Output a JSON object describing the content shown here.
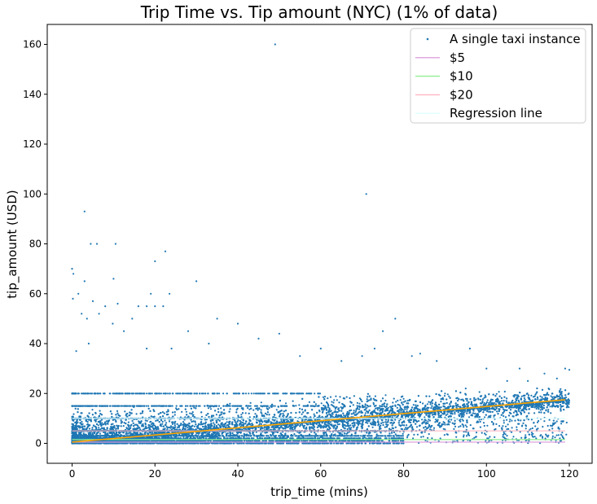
{
  "chart_data": {
    "type": "scatter",
    "title": "Trip Time vs. Tip amount (NYC) (1% of data)",
    "xlabel": "trip_time (mins)",
    "ylabel": "tip_amount (USD)",
    "xlim": [
      -6,
      125.5
    ],
    "ylim": [
      -8,
      168
    ],
    "xticks": [
      0,
      20,
      40,
      60,
      80,
      100,
      120
    ],
    "yticks": [
      0,
      20,
      40,
      60,
      80,
      100,
      120,
      140,
      160
    ],
    "grid": false,
    "legend_position": "top-right",
    "series": [
      {
        "name": "A single taxi instance",
        "kind": "scatter",
        "color": "#1f77b4",
        "outliers": [
          [
            49,
            160
          ],
          [
            71,
            100
          ],
          [
            3,
            93
          ],
          [
            22.5,
            77
          ],
          [
            20,
            73
          ],
          [
            4.5,
            80
          ],
          [
            6,
            80
          ],
          [
            10.5,
            80
          ],
          [
            0,
            70
          ],
          [
            0.3,
            68
          ],
          [
            1.5,
            60
          ],
          [
            3,
            65
          ],
          [
            10,
            66
          ],
          [
            30,
            65
          ],
          [
            23.5,
            60
          ],
          [
            19,
            60
          ],
          [
            0.2,
            58
          ],
          [
            5,
            57
          ],
          [
            8,
            55
          ],
          [
            11,
            56
          ],
          [
            16,
            55
          ],
          [
            18,
            55
          ],
          [
            20,
            55
          ],
          [
            22,
            55
          ],
          [
            40,
            48
          ],
          [
            35,
            50
          ],
          [
            50,
            44
          ],
          [
            75,
            45
          ],
          [
            78,
            50
          ],
          [
            84,
            36
          ],
          [
            96,
            38
          ],
          [
            28,
            45
          ],
          [
            9.8,
            48
          ],
          [
            14.5,
            50
          ],
          [
            3.6,
            50
          ],
          [
            2.3,
            52
          ],
          [
            6.5,
            52
          ],
          [
            12.5,
            45
          ],
          [
            1,
            37
          ],
          [
            4,
            40
          ],
          [
            18,
            38
          ],
          [
            24,
            38
          ],
          [
            33,
            40
          ],
          [
            45,
            42
          ],
          [
            60,
            38
          ],
          [
            55,
            35
          ],
          [
            65,
            33
          ],
          [
            70,
            35
          ],
          [
            73,
            38
          ],
          [
            82,
            35
          ],
          [
            88,
            33
          ],
          [
            105,
            25
          ],
          [
            110,
            25
          ],
          [
            114,
            28
          ],
          [
            117,
            26
          ],
          [
            119,
            30
          ],
          [
            120,
            29.5
          ],
          [
            100,
            30
          ],
          [
            108,
            30
          ],
          [
            95,
            22
          ],
          [
            90,
            20
          ],
          [
            112,
            20
          ],
          [
            115,
            22
          ],
          [
            98,
            18
          ],
          [
            104,
            12
          ],
          [
            110,
            10
          ],
          [
            112,
            2
          ],
          [
            113,
            3
          ],
          [
            118,
            1
          ]
        ],
        "bulk_envelope": {
          "x_range": [
            0,
            120
          ],
          "y_max_by_x": [
            [
              0,
              25
            ],
            [
              20,
              22
            ],
            [
              40,
              21
            ],
            [
              60,
              20
            ],
            [
              80,
              17
            ],
            [
              100,
              12
            ],
            [
              120,
              10
            ]
          ],
          "dense_bands": [
            0,
            1,
            2,
            3,
            5,
            10,
            15,
            20
          ]
        }
      },
      {
        "name": "$5",
        "kind": "hline",
        "y": 0.5,
        "x_range": [
          0,
          119
        ],
        "color": "#dda0dd"
      },
      {
        "name": "$10",
        "kind": "hline",
        "y": 1.5,
        "x_range": [
          0,
          119
        ],
        "color": "#90ee90"
      },
      {
        "name": "$20",
        "kind": "hline",
        "y": 5,
        "x_range": [
          0,
          119
        ],
        "color": "#ffb6c1"
      },
      {
        "name": "Regression line",
        "kind": "hline",
        "y": 10,
        "x_range": [
          0,
          119
        ],
        "color": "#e0ffff"
      },
      {
        "name": "fit",
        "kind": "line",
        "color": "#ffa500",
        "x": [
          0,
          119
        ],
        "y": [
          0.5,
          17.5
        ]
      }
    ]
  }
}
